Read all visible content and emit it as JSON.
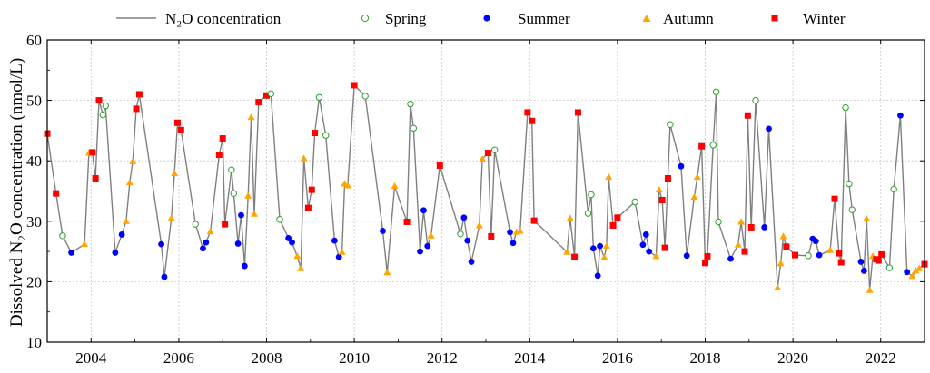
{
  "chart_data": {
    "type": "line",
    "title": "",
    "xlabel": "",
    "ylabel": "Dissolved N₂O concentration (nmol/L)",
    "xlim": [
      2003.0,
      2023.0
    ],
    "ylim": [
      10,
      60
    ],
    "xticks": [
      "2004",
      "2006",
      "2008",
      "2010",
      "2012",
      "2014",
      "2016",
      "2018",
      "2020",
      "2022"
    ],
    "yticks": [
      "10",
      "20",
      "30",
      "40",
      "50",
      "60"
    ],
    "grid": true,
    "legend_position": "top",
    "legend": [
      {
        "name": "N₂O concentration",
        "marker": "line",
        "color": "#808080"
      },
      {
        "name": "Spring",
        "marker": "open-circle",
        "color": "#2ca02c"
      },
      {
        "name": "Summer",
        "marker": "circle",
        "color": "#0000ff"
      },
      {
        "name": "Autumn",
        "marker": "triangle",
        "color": "#ffa500"
      },
      {
        "name": "Winter",
        "marker": "square",
        "color": "#ff0000"
      }
    ],
    "series": [
      {
        "name": "N₂O concentration",
        "points": [
          [
            2003.0,
            44.5,
            "W"
          ],
          [
            2003.2,
            34.6,
            "W"
          ],
          [
            2003.35,
            27.6,
            "Sp"
          ],
          [
            2003.55,
            24.8,
            "Su"
          ],
          [
            2003.85,
            26.2,
            "Au"
          ],
          [
            2003.95,
            41.3,
            "Au"
          ],
          [
            2004.03,
            41.4,
            "W"
          ],
          [
            2004.1,
            37.1,
            "W"
          ],
          [
            2004.18,
            50.0,
            "W"
          ],
          [
            2004.27,
            47.6,
            "Sp"
          ],
          [
            2004.33,
            49.1,
            "Sp"
          ],
          [
            2004.55,
            24.8,
            "Su"
          ],
          [
            2004.7,
            27.8,
            "Su"
          ],
          [
            2004.8,
            30.0,
            "Au"
          ],
          [
            2004.88,
            36.4,
            "Au"
          ],
          [
            2004.95,
            39.9,
            "Au"
          ],
          [
            2005.03,
            48.6,
            "W"
          ],
          [
            2005.1,
            51.0,
            "W"
          ],
          [
            2005.6,
            26.2,
            "Su"
          ],
          [
            2005.67,
            20.8,
            "Su"
          ],
          [
            2005.83,
            30.5,
            "Au"
          ],
          [
            2005.9,
            37.9,
            "Au"
          ],
          [
            2005.97,
            46.3,
            "W"
          ],
          [
            2006.05,
            45.1,
            "W"
          ],
          [
            2006.38,
            29.5,
            "Sp"
          ],
          [
            2006.55,
            25.5,
            "Su"
          ],
          [
            2006.62,
            26.5,
            "Su"
          ],
          [
            2006.72,
            28.3,
            "Au"
          ],
          [
            2006.92,
            41.0,
            "W"
          ],
          [
            2007.0,
            43.7,
            "W"
          ],
          [
            2007.05,
            29.5,
            "W"
          ],
          [
            2007.2,
            38.5,
            "Sp"
          ],
          [
            2007.25,
            34.6,
            "Sp"
          ],
          [
            2007.35,
            26.3,
            "Su"
          ],
          [
            2007.42,
            31.0,
            "Su"
          ],
          [
            2007.5,
            22.6,
            "Su"
          ],
          [
            2007.58,
            34.2,
            "Au"
          ],
          [
            2007.65,
            47.2,
            "Au"
          ],
          [
            2007.72,
            31.2,
            "Au"
          ],
          [
            2007.82,
            49.7,
            "W"
          ],
          [
            2008.0,
            50.8,
            "W"
          ],
          [
            2008.1,
            51.1,
            "Sp"
          ],
          [
            2008.3,
            30.3,
            "Sp"
          ],
          [
            2008.5,
            27.2,
            "Su"
          ],
          [
            2008.58,
            26.5,
            "Su"
          ],
          [
            2008.7,
            24.2,
            "Au"
          ],
          [
            2008.78,
            22.2,
            "Au"
          ],
          [
            2008.85,
            40.4,
            "Au"
          ],
          [
            2008.95,
            32.2,
            "W"
          ],
          [
            2009.03,
            35.2,
            "W"
          ],
          [
            2009.1,
            44.6,
            "W"
          ],
          [
            2009.2,
            50.5,
            "Sp"
          ],
          [
            2009.35,
            44.2,
            "Sp"
          ],
          [
            2009.55,
            26.8,
            "Su"
          ],
          [
            2009.65,
            24.1,
            "Su"
          ],
          [
            2009.72,
            24.9,
            "Au"
          ],
          [
            2009.78,
            36.2,
            "Au"
          ],
          [
            2009.85,
            35.9,
            "Au"
          ],
          [
            2010.0,
            52.5,
            "W"
          ],
          [
            2010.25,
            50.7,
            "Sp"
          ],
          [
            2010.65,
            28.4,
            "Su"
          ],
          [
            2010.75,
            21.5,
            "Au"
          ],
          [
            2010.92,
            35.8,
            "Au"
          ],
          [
            2011.2,
            29.9,
            "W"
          ],
          [
            2011.28,
            49.4,
            "Sp"
          ],
          [
            2011.35,
            45.4,
            "Sp"
          ],
          [
            2011.5,
            25.0,
            "Su"
          ],
          [
            2011.58,
            31.8,
            "Su"
          ],
          [
            2011.67,
            25.9,
            "Su"
          ],
          [
            2011.75,
            27.6,
            "Au"
          ],
          [
            2011.95,
            39.2,
            "W"
          ],
          [
            2012.42,
            27.9,
            "Sp"
          ],
          [
            2012.5,
            30.6,
            "Su"
          ],
          [
            2012.58,
            26.8,
            "Su"
          ],
          [
            2012.67,
            23.3,
            "Su"
          ],
          [
            2012.85,
            29.3,
            "Au"
          ],
          [
            2012.92,
            40.3,
            "Au"
          ],
          [
            2013.05,
            41.3,
            "W"
          ],
          [
            2013.12,
            27.5,
            "W"
          ],
          [
            2013.2,
            41.8,
            "Sp"
          ],
          [
            2013.55,
            28.2,
            "Su"
          ],
          [
            2013.62,
            26.4,
            "Su"
          ],
          [
            2013.7,
            28.2,
            "Au"
          ],
          [
            2013.78,
            28.4,
            "Au"
          ],
          [
            2013.95,
            48.0,
            "W"
          ],
          [
            2014.05,
            46.6,
            "W"
          ],
          [
            2014.1,
            30.1,
            "W"
          ],
          [
            2014.85,
            24.9,
            "Au"
          ],
          [
            2014.92,
            30.5,
            "Au"
          ],
          [
            2015.02,
            24.1,
            "W"
          ],
          [
            2015.1,
            48.0,
            "W"
          ],
          [
            2015.33,
            31.3,
            "Sp"
          ],
          [
            2015.4,
            34.4,
            "Sp"
          ],
          [
            2015.45,
            25.5,
            "Su"
          ],
          [
            2015.55,
            21.0,
            "Su"
          ],
          [
            2015.6,
            25.9,
            "Su"
          ],
          [
            2015.7,
            24.0,
            "Au"
          ],
          [
            2015.75,
            25.9,
            "Au"
          ],
          [
            2015.8,
            37.3,
            "Au"
          ],
          [
            2015.9,
            29.3,
            "W"
          ],
          [
            2016.0,
            30.6,
            "W"
          ],
          [
            2016.4,
            33.2,
            "Sp"
          ],
          [
            2016.58,
            26.1,
            "Su"
          ],
          [
            2016.65,
            27.8,
            "Su"
          ],
          [
            2016.72,
            25.0,
            "Su"
          ],
          [
            2016.88,
            24.2,
            "Au"
          ],
          [
            2016.95,
            35.2,
            "Au"
          ],
          [
            2017.02,
            33.5,
            "W"
          ],
          [
            2017.08,
            25.6,
            "W"
          ],
          [
            2017.15,
            37.1,
            "W"
          ],
          [
            2017.2,
            46.0,
            "Sp"
          ],
          [
            2017.45,
            39.1,
            "Su"
          ],
          [
            2017.58,
            24.3,
            "Su"
          ],
          [
            2017.75,
            34.0,
            "Au"
          ],
          [
            2017.82,
            37.3,
            "Au"
          ],
          [
            2017.92,
            42.4,
            "W"
          ],
          [
            2018.0,
            23.1,
            "W"
          ],
          [
            2018.05,
            24.2,
            "W"
          ],
          [
            2018.18,
            42.6,
            "Sp"
          ],
          [
            2018.25,
            51.4,
            "Sp"
          ],
          [
            2018.3,
            29.9,
            "Sp"
          ],
          [
            2018.58,
            23.8,
            "Su"
          ],
          [
            2018.75,
            26.1,
            "Au"
          ],
          [
            2018.82,
            29.9,
            "Au"
          ],
          [
            2018.9,
            25.0,
            "W"
          ],
          [
            2018.97,
            47.5,
            "W"
          ],
          [
            2019.05,
            29.0,
            "W"
          ],
          [
            2019.15,
            50.0,
            "Sp"
          ],
          [
            2019.35,
            29.0,
            "Su"
          ],
          [
            2019.45,
            45.3,
            "Su"
          ],
          [
            2019.65,
            19.0,
            "Au"
          ],
          [
            2019.72,
            23.0,
            "Au"
          ],
          [
            2019.78,
            27.5,
            "Au"
          ],
          [
            2019.85,
            25.8,
            "W"
          ],
          [
            2020.05,
            24.4,
            "W"
          ],
          [
            2020.35,
            24.3,
            "Sp"
          ],
          [
            2020.45,
            27.1,
            "Su"
          ],
          [
            2020.52,
            26.7,
            "Su"
          ],
          [
            2020.6,
            24.4,
            "Su"
          ],
          [
            2020.85,
            25.2,
            "Au"
          ],
          [
            2020.95,
            33.7,
            "W"
          ],
          [
            2021.05,
            24.7,
            "W"
          ],
          [
            2021.1,
            23.2,
            "W"
          ],
          [
            2021.2,
            48.8,
            "Sp"
          ],
          [
            2021.28,
            36.2,
            "Sp"
          ],
          [
            2021.35,
            31.9,
            "Sp"
          ],
          [
            2021.55,
            23.3,
            "Su"
          ],
          [
            2021.62,
            21.8,
            "Su"
          ],
          [
            2021.68,
            30.4,
            "Au"
          ],
          [
            2021.75,
            18.6,
            "Au"
          ],
          [
            2021.82,
            24.2,
            "Au"
          ],
          [
            2021.9,
            23.7,
            "W"
          ],
          [
            2021.95,
            23.5,
            "W"
          ],
          [
            2022.02,
            24.5,
            "W"
          ],
          [
            2022.2,
            22.3,
            "Sp"
          ],
          [
            2022.3,
            35.3,
            "Sp"
          ],
          [
            2022.45,
            47.5,
            "Su"
          ],
          [
            2022.6,
            21.6,
            "Su"
          ],
          [
            2022.72,
            20.9,
            "Au"
          ],
          [
            2022.8,
            21.8,
            "Au"
          ],
          [
            2022.88,
            22.2,
            "Au"
          ],
          [
            2023.0,
            22.9,
            "W"
          ]
        ]
      }
    ],
    "colors": {
      "line": "#808080",
      "spring": "#2ca02c",
      "summer": "#0000ff",
      "autumn": "#ffa500",
      "winter": "#ff0000",
      "grid": "#c8c8c8"
    }
  }
}
